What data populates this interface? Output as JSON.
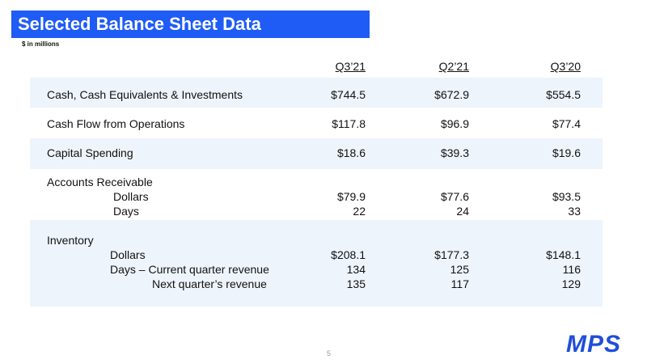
{
  "header": {
    "title": "Selected Balance Sheet Data",
    "subtitle": "$ in millions"
  },
  "table": {
    "columns": [
      "Q3’21",
      "Q2’21",
      "Q3’20"
    ],
    "rows": [
      {
        "label": "Cash, Cash Equivalents & Investments",
        "values": [
          "$744.5",
          "$672.9",
          "$554.5"
        ]
      },
      {
        "label": "Cash Flow from Operations",
        "values": [
          "$117.8",
          "$96.9",
          "$77.4"
        ]
      },
      {
        "label": "Capital Spending",
        "values": [
          "$18.6",
          "$39.3",
          "$19.6"
        ]
      },
      {
        "label": "Accounts Receivable",
        "items": [
          {
            "label": "Dollars",
            "values": [
              "$79.9",
              "$77.6",
              "$93.5"
            ]
          },
          {
            "label": "Days",
            "values": [
              "22",
              "24",
              "33"
            ]
          }
        ]
      },
      {
        "label": "Inventory",
        "items": [
          {
            "label": "Dollars",
            "values": [
              "$208.1",
              "$177.3",
              "$148.1"
            ]
          },
          {
            "label": "Days – Current quarter revenue",
            "values": [
              "134",
              "125",
              "116"
            ]
          },
          {
            "label": "Next quarter’s revenue",
            "values": [
              "135",
              "117",
              "129"
            ]
          }
        ]
      }
    ]
  },
  "footer": {
    "page": "5",
    "logo": "MPS"
  }
}
